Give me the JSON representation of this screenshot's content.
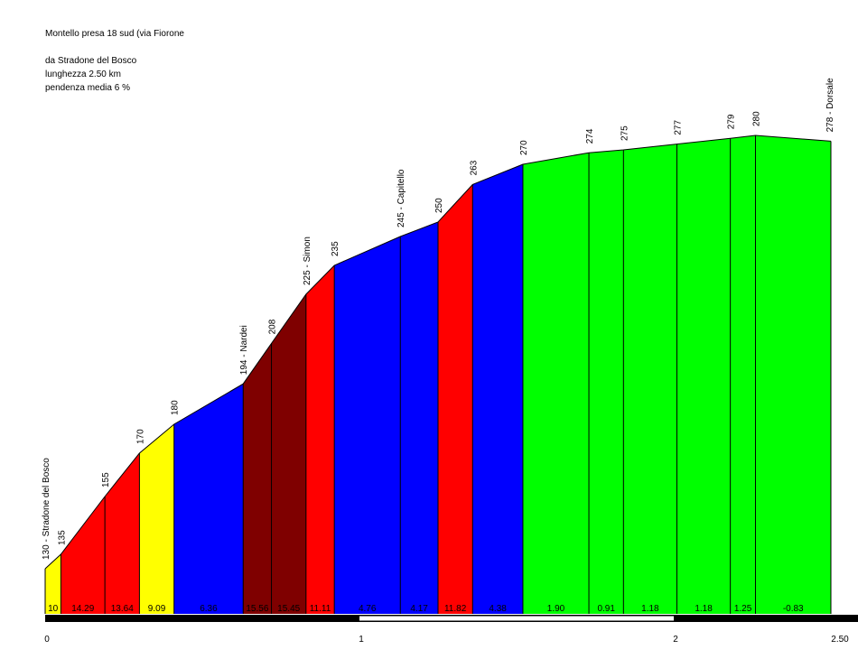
{
  "header": {
    "title": "Montello presa 18 sud (via Fiorone",
    "start": "da Stradone del Bosco",
    "length": "lunghezza 2.50 km",
    "gradient": "pendenza media 6 %"
  },
  "chart_data": {
    "type": "area",
    "title": "Montello presa 18 sud (via Fiorone",
    "xlabel": "",
    "ylabel": "",
    "x_ticks": [
      "0",
      "1",
      "2",
      "2.50"
    ],
    "xlim": [
      0,
      2.5
    ],
    "ylim": [
      125,
      285
    ],
    "points": [
      {
        "x": 0.0,
        "alt": 130,
        "label": "130 - Stradone del Bosco"
      },
      {
        "x": 0.05,
        "alt": 135,
        "label": "135"
      },
      {
        "x": 0.19,
        "alt": 155,
        "label": "155"
      },
      {
        "x": 0.3,
        "alt": 170,
        "label": "170"
      },
      {
        "x": 0.41,
        "alt": 180,
        "label": "180"
      },
      {
        "x": 0.63,
        "alt": 194,
        "label": "194 - Nardei"
      },
      {
        "x": 0.72,
        "alt": 208,
        "label": "208"
      },
      {
        "x": 0.83,
        "alt": 225,
        "label": "225 - Simon"
      },
      {
        "x": 0.92,
        "alt": 235,
        "label": "235"
      },
      {
        "x": 1.13,
        "alt": 245,
        "label": "245 - Capitello"
      },
      {
        "x": 1.25,
        "alt": 250,
        "label": "250"
      },
      {
        "x": 1.36,
        "alt": 263,
        "label": "263"
      },
      {
        "x": 1.52,
        "alt": 270,
        "label": "270"
      },
      {
        "x": 1.73,
        "alt": 274,
        "label": "274"
      },
      {
        "x": 1.84,
        "alt": 275,
        "label": "275"
      },
      {
        "x": 2.01,
        "alt": 277,
        "label": "277"
      },
      {
        "x": 2.18,
        "alt": 279,
        "label": "279"
      },
      {
        "x": 2.26,
        "alt": 280,
        "label": "280"
      },
      {
        "x": 2.5,
        "alt": 278,
        "label": "278 - Dorsale"
      }
    ],
    "segments": [
      {
        "gradient": "10",
        "color": "#ffff00"
      },
      {
        "gradient": "14.29",
        "color": "#ff0000"
      },
      {
        "gradient": "13.64",
        "color": "#ff0000"
      },
      {
        "gradient": "9.09",
        "color": "#ffff00"
      },
      {
        "gradient": "6.36",
        "color": "#0000ff"
      },
      {
        "gradient": "15.56",
        "color": "#7f0000"
      },
      {
        "gradient": "15.45",
        "color": "#7f0000"
      },
      {
        "gradient": "11.11",
        "color": "#ff0000"
      },
      {
        "gradient": "4.76",
        "color": "#0000ff"
      },
      {
        "gradient": "4.17",
        "color": "#0000ff"
      },
      {
        "gradient": "11.82",
        "color": "#ff0000"
      },
      {
        "gradient": "4.38",
        "color": "#0000ff"
      },
      {
        "gradient": "1.90",
        "color": "#00ff00"
      },
      {
        "gradient": "0.91",
        "color": "#00ff00"
      },
      {
        "gradient": "1.18",
        "color": "#00ff00"
      },
      {
        "gradient": "1.18",
        "color": "#00ff00"
      },
      {
        "gradient": "1.25",
        "color": "#00ff00"
      },
      {
        "gradient": "-0.83",
        "color": "#00ff00"
      }
    ]
  }
}
